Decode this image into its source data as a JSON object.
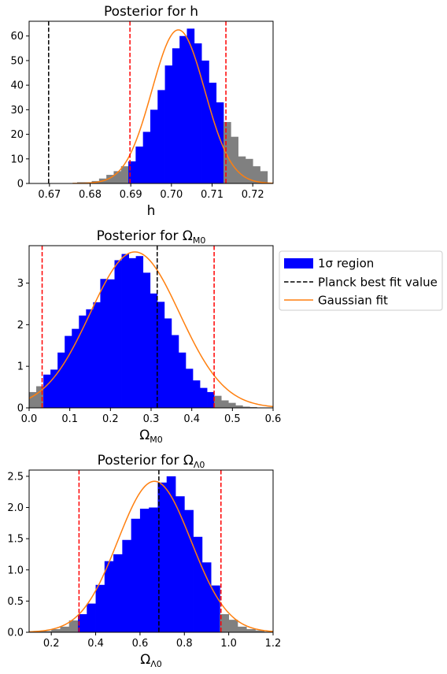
{
  "chart_data": [
    {
      "type": "bar",
      "id": "h",
      "title": "Posterior for h",
      "xlabel": "h",
      "xlim": [
        0.665,
        0.725
      ],
      "ylim": [
        0,
        66
      ],
      "xticks": [
        0.67,
        0.68,
        0.69,
        0.7,
        0.71,
        0.72
      ],
      "xtick_labels": [
        "0.67",
        "0.68",
        "0.69",
        "0.70",
        "0.71",
        "0.72"
      ],
      "yticks": [
        0,
        10,
        20,
        30,
        40,
        50,
        60
      ],
      "ytick_labels": [
        "0",
        "10",
        "20",
        "30",
        "40",
        "50",
        "60"
      ],
      "bins": [
        0.6768,
        0.6786,
        0.6804,
        0.6822,
        0.684,
        0.6858,
        0.6876,
        0.6894,
        0.6912,
        0.693,
        0.6948,
        0.6966,
        0.6984,
        0.7002,
        0.702,
        0.7038,
        0.7056,
        0.7074,
        0.7092,
        0.711,
        0.7128,
        0.7146,
        0.7164,
        0.7182,
        0.72,
        0.7218
      ],
      "counts": [
        0.5,
        0.5,
        1,
        2,
        3.5,
        5,
        7,
        9,
        15,
        21,
        30,
        38,
        48,
        55,
        60,
        63,
        57,
        50,
        41,
        33,
        25,
        19,
        11,
        10,
        7,
        5
      ],
      "sigma_range": [
        0.6898,
        0.7134
      ],
      "planck": 0.6698,
      "fit": {
        "mu": 0.7017,
        "sigma": 0.0065,
        "amp": 62.5
      }
    },
    {
      "type": "bar",
      "id": "om",
      "title": "Posterior for Ω",
      "title_sub": "M0",
      "xlabel": "Ω",
      "xlabel_sub": "M0",
      "xlim": [
        0.0,
        0.6
      ],
      "ylim": [
        0,
        3.9
      ],
      "xticks": [
        0.0,
        0.1,
        0.2,
        0.3,
        0.4,
        0.5,
        0.6
      ],
      "xtick_labels": [
        "0.0",
        "0.1",
        "0.2",
        "0.3",
        "0.4",
        "0.5",
        "0.6"
      ],
      "yticks": [
        0,
        1,
        2,
        3
      ],
      "ytick_labels": [
        "0",
        "1",
        "2",
        "3"
      ],
      "bins": [
        0.0,
        0.0175,
        0.035,
        0.0525,
        0.07,
        0.0875,
        0.105,
        0.1225,
        0.14,
        0.1575,
        0.175,
        0.1925,
        0.21,
        0.2275,
        0.245,
        0.2625,
        0.28,
        0.2975,
        0.315,
        0.3325,
        0.35,
        0.3675,
        0.385,
        0.4025,
        0.42,
        0.4375,
        0.455,
        0.4725,
        0.49,
        0.5075,
        0.525,
        0.5425,
        0.56,
        0.5775
      ],
      "counts": [
        0.38,
        0.52,
        0.8,
        0.92,
        1.33,
        1.73,
        1.9,
        2.22,
        2.37,
        2.54,
        3.1,
        3.09,
        3.55,
        3.7,
        3.6,
        3.65,
        3.25,
        2.75,
        2.55,
        2.15,
        1.75,
        1.33,
        0.94,
        0.66,
        0.48,
        0.38,
        0.29,
        0.18,
        0.12,
        0.06,
        0.03,
        0.02,
        0.01,
        0.01
      ],
      "sigma_range": [
        0.032,
        0.455
      ],
      "planck": 0.315,
      "fit": {
        "mu": 0.26,
        "sigma": 0.11,
        "amp": 3.75
      }
    },
    {
      "type": "bar",
      "id": "ol",
      "title": "Posterior for Ω",
      "title_sub": "Λ0",
      "xlabel": "Ω",
      "xlabel_sub": "Λ0",
      "xlim": [
        0.1,
        1.2
      ],
      "ylim": [
        0,
        2.6
      ],
      "xticks": [
        0.2,
        0.4,
        0.6,
        0.8,
        1.0,
        1.2
      ],
      "xtick_labels": [
        "0.2",
        "0.4",
        "0.6",
        "0.8",
        "1.0",
        "1.2"
      ],
      "yticks": [
        0.0,
        0.5,
        1.0,
        1.5,
        2.0,
        2.5
      ],
      "ytick_labels": [
        "0.0",
        "0.5",
        "1.0",
        "1.5",
        "2.0",
        "2.5"
      ],
      "bins": [
        0.12,
        0.16,
        0.2,
        0.24,
        0.28,
        0.32,
        0.36,
        0.4,
        0.44,
        0.48,
        0.52,
        0.56,
        0.6,
        0.64,
        0.68,
        0.72,
        0.76,
        0.8,
        0.84,
        0.88,
        0.92,
        0.96,
        1.0,
        1.04,
        1.08,
        1.12,
        1.16
      ],
      "counts": [
        0.02,
        0.02,
        0.05,
        0.09,
        0.19,
        0.29,
        0.46,
        0.76,
        1.14,
        1.25,
        1.48,
        1.82,
        1.98,
        2.0,
        2.4,
        2.5,
        2.18,
        1.96,
        1.53,
        1.12,
        0.75,
        0.29,
        0.2,
        0.09,
        0.05,
        0.03,
        0.01
      ],
      "sigma_range": [
        0.325,
        0.965
      ],
      "planck": 0.685,
      "fit": {
        "mu": 0.665,
        "sigma": 0.165,
        "amp": 2.42
      }
    }
  ],
  "legend": {
    "items": [
      {
        "label": "1σ region",
        "kind": "patch",
        "color": "#0000ff"
      },
      {
        "label": "Planck best fit value",
        "kind": "dashed",
        "color": "#000000"
      },
      {
        "label": "Gaussian fit",
        "kind": "line",
        "color": "#ff7f0e"
      }
    ]
  },
  "colors": {
    "in_region": "#0000ff",
    "out_region": "#808080",
    "sigma_line": "#ff0000",
    "planck_line": "#000000",
    "fit_line": "#ff7f0e"
  }
}
